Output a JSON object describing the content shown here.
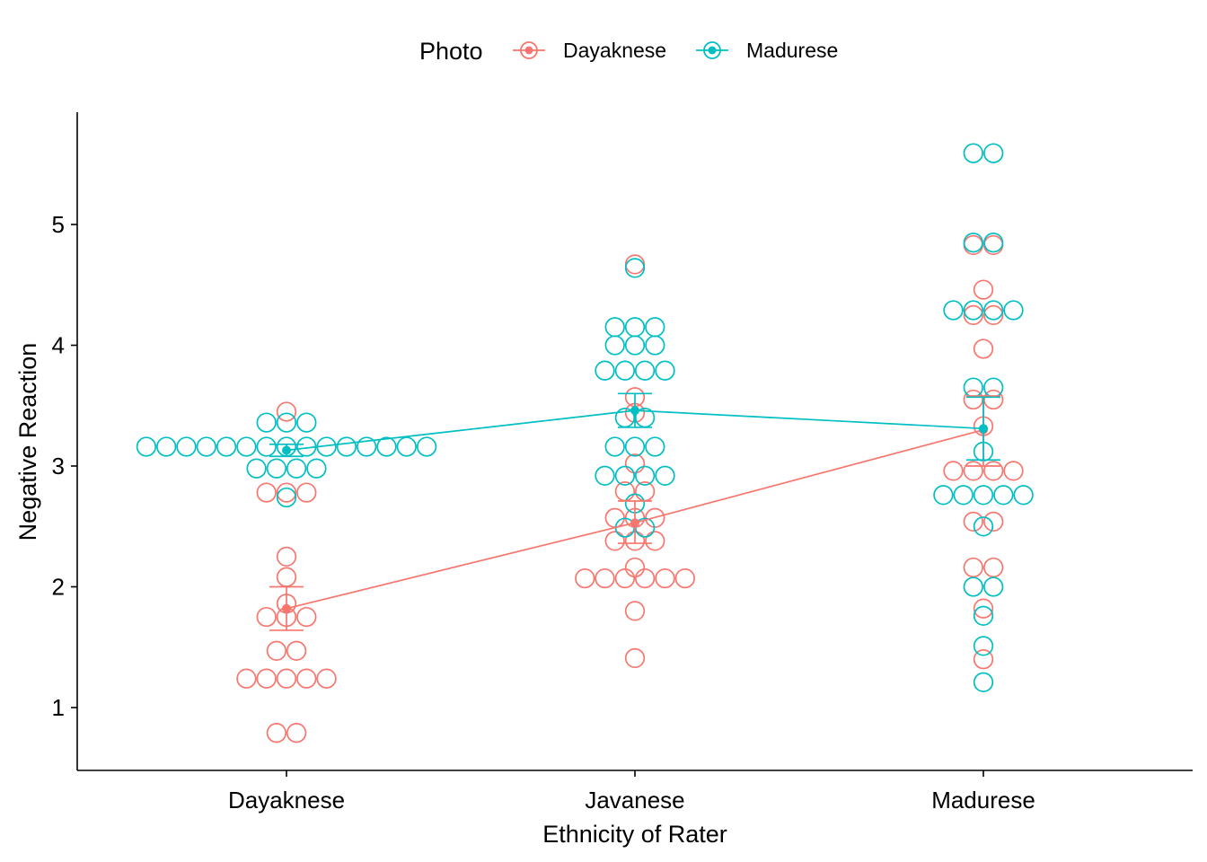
{
  "chart_data": {
    "type": "scatter",
    "subtype": "beeswarm dot plot with mean and error bars",
    "xlabel": "Ethnicity of Rater",
    "ylabel": "Negative Reaction",
    "categories": [
      "Dayaknese",
      "Javanese",
      "Madurese"
    ],
    "yticks": [
      1,
      2,
      3,
      4,
      5
    ],
    "ylim": [
      0.5,
      5.97
    ],
    "grid": false,
    "legend": {
      "title": "Photo",
      "position": "top",
      "entries": [
        "Dayaknese",
        "Madurese"
      ]
    },
    "series": [
      {
        "name": "Dayaknese",
        "color": "#F8766D",
        "points": [
          {
            "category": "Dayaknese",
            "values": [
              3.45,
              2.78,
              2.78,
              2.78,
              2.25,
              2.08,
              1.86,
              1.75,
              1.75,
              1.75,
              1.47,
              1.47,
              1.24,
              1.24,
              1.24,
              1.24,
              1.24,
              0.79,
              0.79
            ]
          },
          {
            "category": "Javanese",
            "values": [
              4.67,
              3.57,
              3.44,
              3.02,
              2.79,
              2.79,
              2.57,
              2.57,
              2.57,
              2.38,
              2.38,
              2.38,
              2.16,
              2.07,
              2.07,
              2.07,
              2.07,
              2.07,
              2.07,
              1.8,
              1.41
            ]
          },
          {
            "category": "Madurese",
            "values": [
              4.83,
              4.83,
              4.46,
              4.25,
              4.25,
              3.97,
              3.55,
              3.55,
              3.33,
              2.96,
              2.96,
              2.96,
              2.96,
              2.54,
              2.54,
              2.16,
              2.16,
              1.82,
              1.4
            ]
          }
        ],
        "mean": [
          1.82,
          2.53,
          3.3
        ],
        "error": [
          [
            1.64,
            2.0
          ],
          [
            2.36,
            2.71
          ],
          [
            3.0,
            3.58
          ]
        ]
      },
      {
        "name": "Madurese",
        "color": "#00BFC4",
        "points": [
          {
            "category": "Dayaknese",
            "values": [
              3.36,
              3.36,
              3.36,
              3.16,
              3.16,
              3.16,
              3.16,
              3.16,
              3.16,
              3.16,
              3.16,
              3.16,
              3.16,
              3.16,
              3.16,
              3.16,
              3.16,
              3.16,
              2.98,
              2.98,
              2.98,
              2.98,
              2.74
            ]
          },
          {
            "category": "Javanese",
            "values": [
              4.64,
              4.15,
              4.15,
              4.15,
              4.0,
              4.0,
              4.0,
              3.79,
              3.79,
              3.79,
              3.79,
              3.4,
              3.4,
              3.16,
              3.16,
              3.16,
              2.92,
              2.92,
              2.92,
              2.92,
              2.69,
              2.49,
              2.49
            ]
          },
          {
            "category": "Madurese",
            "values": [
              5.59,
              5.59,
              4.85,
              4.85,
              4.29,
              4.29,
              4.29,
              4.29,
              3.65,
              3.65,
              3.12,
              2.76,
              2.76,
              2.76,
              2.76,
              2.76,
              2.5,
              2.0,
              2.0,
              1.76,
              1.51,
              1.21
            ]
          }
        ],
        "mean": [
          3.13,
          3.46,
          3.31
        ],
        "error": [
          [
            3.08,
            3.18
          ],
          [
            3.32,
            3.6
          ],
          [
            3.05,
            3.57
          ]
        ]
      }
    ]
  }
}
